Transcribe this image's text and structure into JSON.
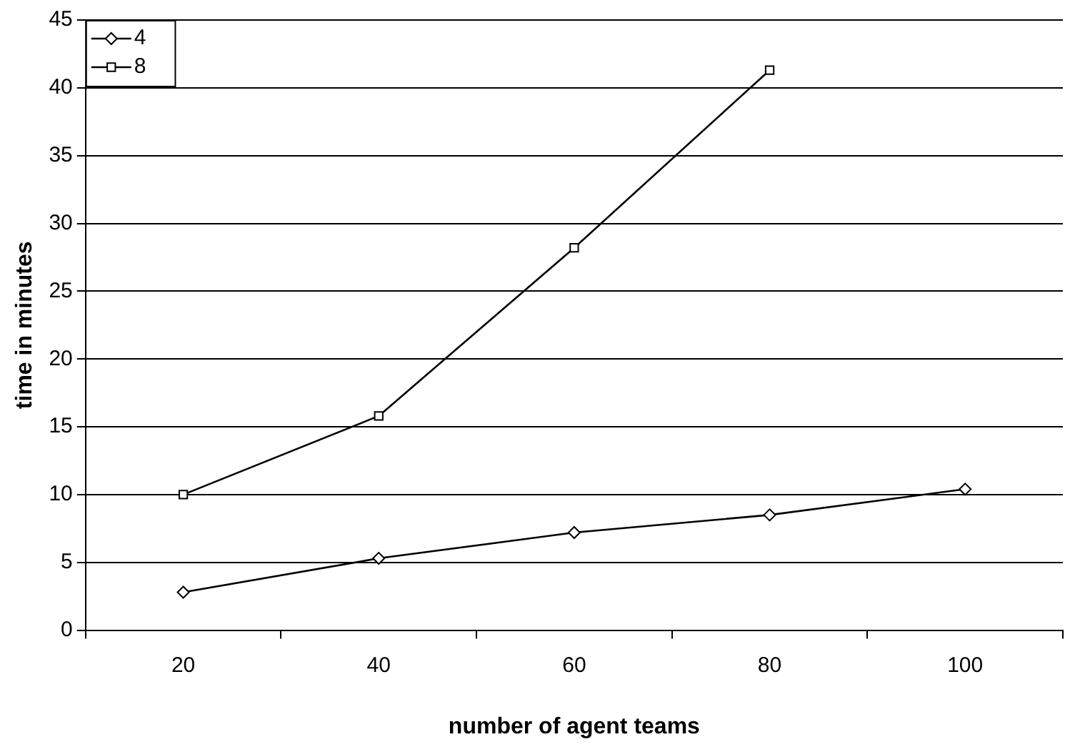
{
  "chart_data": {
    "type": "line",
    "xlabel": "number of agent teams",
    "ylabel": "time in minutes",
    "categories": [
      "20",
      "40",
      "60",
      "80",
      "100"
    ],
    "series": [
      {
        "name": "4",
        "color": "#000000",
        "marker": "diamond",
        "values": [
          2.8,
          5.3,
          7.2,
          8.5,
          10.4
        ]
      },
      {
        "name": "8",
        "color": "#000000",
        "marker": "square",
        "values": [
          10.0,
          15.8,
          28.2,
          41.3,
          null
        ]
      }
    ],
    "ylim": [
      0,
      45
    ],
    "yticks": [
      0,
      5,
      10,
      15,
      20,
      25,
      30,
      35,
      40,
      45
    ],
    "grid": "y",
    "legend": "top left",
    "line_style": "solid"
  }
}
